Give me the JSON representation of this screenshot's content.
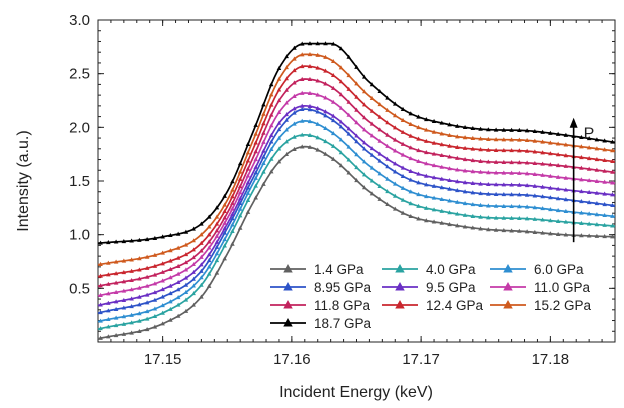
{
  "chart_data": {
    "type": "line",
    "xlabel": "Incident Energy (keV)",
    "ylabel": "Intensity (a.u.)",
    "xlim": [
      17.145,
      17.185
    ],
    "ylim": [
      0.0,
      3.0
    ],
    "x_ticks": [
      "17.15",
      "17.16",
      "17.17",
      "17.18"
    ],
    "x_tick_values": [
      17.15,
      17.16,
      17.17,
      17.18
    ],
    "y_ticks": [
      "0.5",
      "1.0",
      "1.5",
      "2.0",
      "2.5",
      "3.0"
    ],
    "y_tick_values": [
      0.5,
      1.0,
      1.5,
      2.0,
      2.5,
      3.0
    ],
    "grid": false,
    "legend_position": "bottom-right",
    "marker": "triangle",
    "annotation": {
      "label": "P",
      "x": 17.1818,
      "y_start": 0.93,
      "y_end": 2.08
    },
    "x": [
      17.145,
      17.15,
      17.153,
      17.155,
      17.157,
      17.159,
      17.161,
      17.163,
      17.166,
      17.169,
      17.172,
      17.175,
      17.178,
      17.181,
      17.185
    ],
    "series": [
      {
        "name": "1.4 GPa",
        "color": "#606060",
        "values": [
          0.03,
          0.17,
          0.42,
          0.82,
          1.3,
          1.68,
          1.82,
          1.72,
          1.4,
          1.18,
          1.1,
          1.05,
          1.03,
          1.0,
          0.98
        ]
      },
      {
        "name": "4.0 GPa",
        "color": "#2aa3a1",
        "values": [
          0.12,
          0.27,
          0.53,
          0.94,
          1.41,
          1.8,
          1.93,
          1.84,
          1.52,
          1.3,
          1.21,
          1.16,
          1.15,
          1.12,
          1.08
        ]
      },
      {
        "name": "6.0 GPa",
        "color": "#2e8ed1",
        "values": [
          0.19,
          0.34,
          0.6,
          1.0,
          1.48,
          1.9,
          2.06,
          1.96,
          1.64,
          1.41,
          1.32,
          1.27,
          1.26,
          1.22,
          1.17
        ]
      },
      {
        "name": "8.95 GPa",
        "color": "#2d53c8",
        "values": [
          0.27,
          0.42,
          0.66,
          1.06,
          1.53,
          1.98,
          2.17,
          2.08,
          1.76,
          1.52,
          1.43,
          1.38,
          1.37,
          1.33,
          1.27
        ]
      },
      {
        "name": "9.5 GPa",
        "color": "#6a2fc4",
        "values": [
          0.34,
          0.49,
          0.72,
          1.1,
          1.58,
          2.04,
          2.2,
          2.12,
          1.82,
          1.6,
          1.51,
          1.47,
          1.46,
          1.42,
          1.37
        ]
      },
      {
        "name": "11.0 GPa",
        "color": "#c43aa8",
        "values": [
          0.43,
          0.57,
          0.79,
          1.15,
          1.65,
          2.14,
          2.32,
          2.25,
          1.94,
          1.72,
          1.62,
          1.58,
          1.57,
          1.53,
          1.48
        ]
      },
      {
        "name": "11.8 GPa",
        "color": "#c2225d",
        "values": [
          0.52,
          0.65,
          0.85,
          1.2,
          1.72,
          2.25,
          2.45,
          2.38,
          2.05,
          1.82,
          1.73,
          1.68,
          1.67,
          1.64,
          1.58
        ]
      },
      {
        "name": "12.4 GPa",
        "color": "#c9262e",
        "values": [
          0.61,
          0.73,
          0.92,
          1.26,
          1.8,
          2.35,
          2.57,
          2.5,
          2.17,
          1.93,
          1.83,
          1.79,
          1.78,
          1.74,
          1.68
        ]
      },
      {
        "name": "15.2 GPa",
        "color": "#cf5a1e",
        "values": [
          0.72,
          0.83,
          1.0,
          1.32,
          1.88,
          2.45,
          2.68,
          2.63,
          2.29,
          2.04,
          1.93,
          1.89,
          1.88,
          1.84,
          1.78
        ]
      },
      {
        "name": "18.7 GPa",
        "color": "#000000",
        "values": [
          0.92,
          0.98,
          1.1,
          1.4,
          1.96,
          2.55,
          2.78,
          2.78,
          2.42,
          2.14,
          2.03,
          1.98,
          1.97,
          1.93,
          1.86
        ]
      }
    ],
    "legend_order": [
      "1.4 GPa",
      "4.0 GPa",
      "6.0 GPa",
      "8.95 GPa",
      "9.5 GPa",
      "11.0 GPa",
      "11.8 GPa",
      "12.4 GPa",
      "15.2 GPa",
      "18.7 GPa"
    ]
  }
}
